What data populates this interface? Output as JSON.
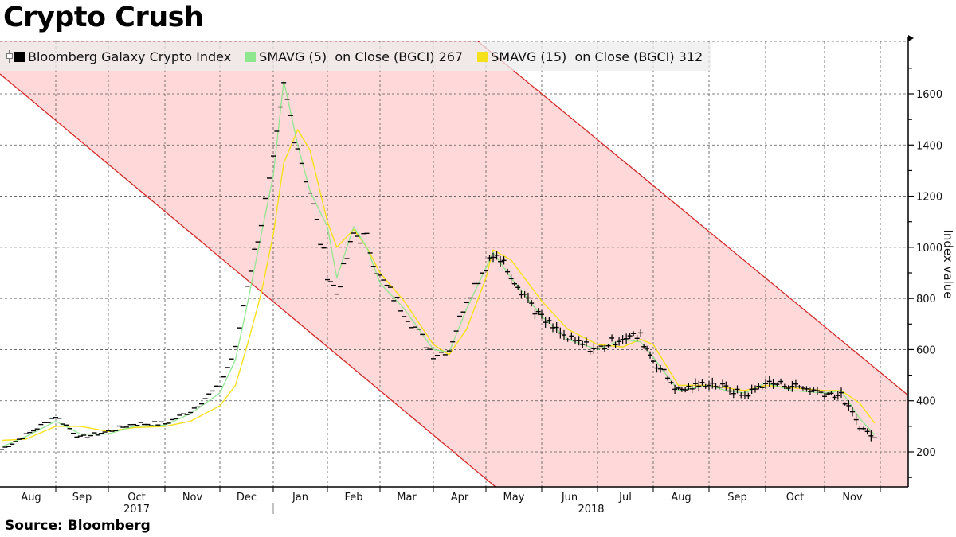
{
  "title": "Crypto Crush",
  "source": "Source: Bloomberg",
  "legend": [
    {
      "label": "Bloomberg Galaxy Crypto Index",
      "color": "#000000",
      "type": "ohlc-bars"
    },
    {
      "label": "SMAVG (5)  on Close (BGCI) 267",
      "color": "#8ee68e",
      "type": "line"
    },
    {
      "label": "SMAVG (15)  on Close (BGCI) 312",
      "color": "#f5e11a",
      "type": "line"
    }
  ],
  "y_axis": {
    "title": "Index value",
    "ticks": [
      200,
      400,
      600,
      800,
      1000,
      1200,
      1400,
      1600
    ]
  },
  "x_axis": {
    "months": [
      "Aug",
      "Sep",
      "Oct",
      "Nov",
      "Dec",
      "Jan",
      "Feb",
      "Mar",
      "Apr",
      "May",
      "Jun",
      "Jul",
      "Aug",
      "Sep",
      "Oct",
      "Nov"
    ],
    "years": [
      {
        "label": "2017",
        "under": "Oct"
      },
      {
        "label": "2018",
        "under": "Jun"
      }
    ]
  },
  "colors": {
    "channel_fill": "#ffd9d9",
    "channel_line": "#d42a2a",
    "sma5": "#8ee68e",
    "sma15": "#f5e11a",
    "price": "#000000",
    "grid": "#555555"
  },
  "chart_data": {
    "type": "line",
    "title": "Crypto Crush",
    "xlabel": "",
    "ylabel": "Index value",
    "ylim": [
      80,
      1800
    ],
    "grid": true,
    "legend_position": "top-left",
    "x": [
      "2017-08-01",
      "2017-08-15",
      "2017-09-01",
      "2017-09-15",
      "2017-10-01",
      "2017-10-15",
      "2017-11-01",
      "2017-11-15",
      "2017-12-01",
      "2017-12-10",
      "2017-12-17",
      "2017-12-25",
      "2018-01-01",
      "2018-01-07",
      "2018-01-15",
      "2018-01-22",
      "2018-02-01",
      "2018-02-06",
      "2018-02-15",
      "2018-02-22",
      "2018-03-01",
      "2018-03-15",
      "2018-04-01",
      "2018-04-10",
      "2018-04-20",
      "2018-05-01",
      "2018-05-05",
      "2018-05-15",
      "2018-06-01",
      "2018-06-15",
      "2018-07-01",
      "2018-07-15",
      "2018-07-25",
      "2018-08-01",
      "2018-08-15",
      "2018-09-01",
      "2018-09-10",
      "2018-09-20",
      "2018-10-01",
      "2018-10-15",
      "2018-11-01",
      "2018-11-10",
      "2018-11-20",
      "2018-11-28"
    ],
    "series": [
      {
        "name": "Bloomberg Galaxy Crypto Index",
        "values": [
          210,
          265,
          340,
          255,
          280,
          310,
          310,
          360,
          460,
          600,
          860,
          1100,
          1320,
          1620,
          1400,
          1220,
          900,
          820,
          1050,
          1030,
          880,
          750,
          580,
          600,
          800,
          930,
          990,
          900,
          720,
          640,
          600,
          650,
          650,
          560,
          440,
          470,
          450,
          420,
          470,
          460,
          430,
          420,
          300,
          255
        ]
      },
      {
        "name": "SMAVG (5) on Close (BGCI) 267",
        "values": [
          220,
          260,
          320,
          270,
          270,
          300,
          305,
          350,
          430,
          560,
          780,
          1050,
          1280,
          1650,
          1400,
          1220,
          1080,
          880,
          1080,
          1000,
          860,
          760,
          600,
          590,
          760,
          920,
          980,
          880,
          730,
          640,
          600,
          640,
          630,
          570,
          440,
          460,
          440,
          430,
          470,
          440,
          430,
          440,
          330,
          267
        ]
      },
      {
        "name": "SMAVG (15) on Close (BGCI) 312",
        "values": [
          245,
          250,
          300,
          300,
          280,
          295,
          300,
          320,
          380,
          460,
          620,
          820,
          1050,
          1330,
          1460,
          1380,
          1100,
          1000,
          1070,
          1000,
          900,
          790,
          620,
          580,
          680,
          880,
          990,
          950,
          790,
          680,
          620,
          610,
          640,
          620,
          460,
          460,
          450,
          440,
          460,
          450,
          440,
          440,
          390,
          312
        ]
      }
    ],
    "channel": {
      "lower_line": "descending trend line from ~1710 (Aug 2017) to ~80 (early May 2018)",
      "upper_line": "descending trend line from ~1800 (mid Apr 2018) to ~420 (end Nov 2018)"
    }
  }
}
